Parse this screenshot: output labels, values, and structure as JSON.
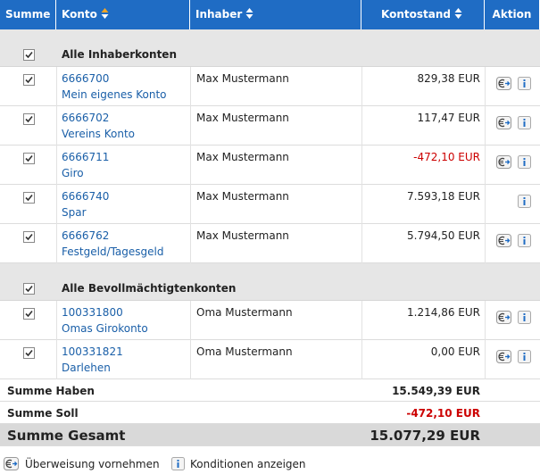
{
  "header": {
    "columns": [
      "Summe",
      "Konto",
      "Inhaber",
      "Kontostand",
      "Aktion"
    ]
  },
  "groups": [
    {
      "label": "Alle Inhaberkonten",
      "accounts": [
        {
          "number": "6666700",
          "name": "Mein eigenes Konto",
          "owner": "Max Mustermann",
          "balance": "829,38 EUR",
          "can_transfer": true
        },
        {
          "number": "6666702",
          "name": "Vereins Konto",
          "owner": "Max Mustermann",
          "balance": "117,47 EUR",
          "can_transfer": true
        },
        {
          "number": "6666711",
          "name": "Giro",
          "owner": "Max Mustermann",
          "balance": "-472,10 EUR",
          "can_transfer": true
        },
        {
          "number": "6666740",
          "name": "Spar",
          "owner": "Max Mustermann",
          "balance": "7.593,18 EUR",
          "can_transfer": false
        },
        {
          "number": "6666762",
          "name": "Festgeld/Tagesgeld",
          "owner": "Max Mustermann",
          "balance": "5.794,50 EUR",
          "can_transfer": true
        }
      ]
    },
    {
      "label": "Alle Bevollmächtigtenkonten",
      "accounts": [
        {
          "number": "100331800",
          "name": "Omas Girokonto",
          "owner": "Oma Mustermann",
          "balance": "1.214,86 EUR",
          "can_transfer": true
        },
        {
          "number": "100331821",
          "name": "Darlehen",
          "owner": "Oma Mustermann",
          "balance": "0,00 EUR",
          "can_transfer": true
        }
      ]
    }
  ],
  "totals": [
    {
      "label": "Summe Haben",
      "value": "15.549,39 EUR"
    },
    {
      "label": "Summe Soll",
      "value": "-472,10 EUR"
    },
    {
      "label": "Summe Gesamt",
      "value": "15.077,29 EUR"
    }
  ],
  "legend": [
    "Überweisung vornehmen",
    "Konditionen anzeigen"
  ]
}
